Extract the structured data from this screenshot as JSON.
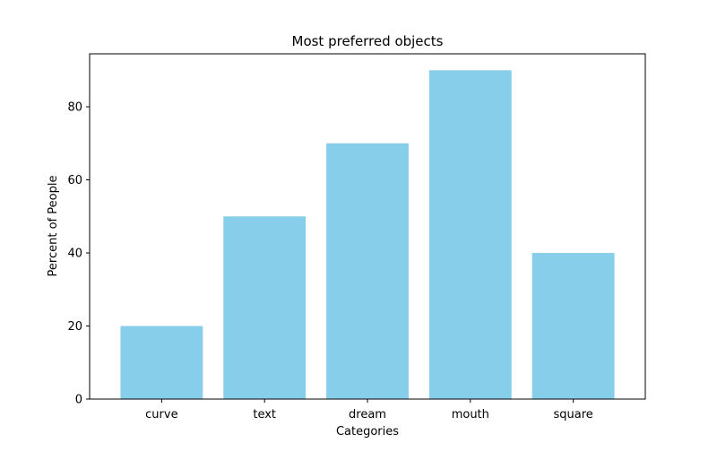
{
  "chart_data": {
    "type": "bar",
    "title": "Most preferred objects",
    "xlabel": "Categories",
    "ylabel": "Percent of People",
    "categories": [
      "curve",
      "text",
      "dream",
      "mouth",
      "square"
    ],
    "values": [
      20,
      50,
      70,
      90,
      40
    ],
    "ylim": [
      0,
      94.5
    ],
    "yticks": [
      0,
      20,
      40,
      60,
      80
    ],
    "bar_color": "#87ceeb",
    "grid": false,
    "legend": "none"
  }
}
